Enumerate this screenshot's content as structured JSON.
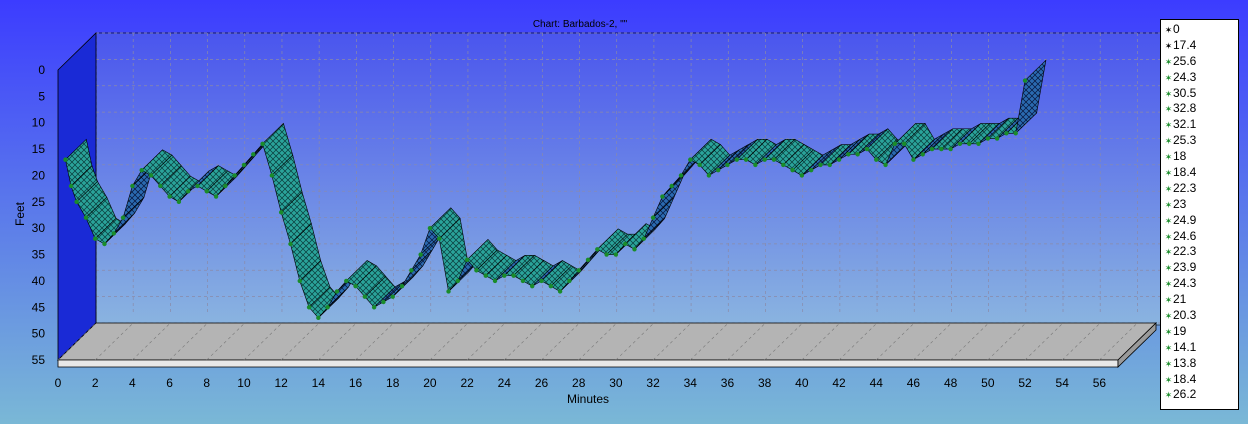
{
  "colors": {
    "background_top": "#3c3cff",
    "background_bottom": "#7ab8d6",
    "plot_top": "#4a55ee",
    "plot_bottom": "#8ab4e0",
    "wall": "#1a2ad6",
    "floor": "#b4b4b4",
    "ribbon_front": "#2aa39a",
    "ribbon_back": "#0c2a8a",
    "marker": "#1a8c2a"
  },
  "chart_data": {
    "type": "line",
    "title": "Chart: Barbados-2, \"\"",
    "xlabel": "Minutes",
    "ylabel": "Feet",
    "xlim": [
      0,
      57
    ],
    "ylim": [
      57,
      -2
    ],
    "x_ticks": [
      "0",
      "2",
      "4",
      "6",
      "8",
      "10",
      "12",
      "14",
      "16",
      "18",
      "20",
      "22",
      "24",
      "26",
      "28",
      "30",
      "32",
      "34",
      "36",
      "38",
      "40",
      "42",
      "44",
      "46",
      "48",
      "50",
      "52",
      "54",
      "56"
    ],
    "y_ticks": [
      "0",
      "5",
      "10",
      "15",
      "20",
      "25",
      "30",
      "35",
      "40",
      "45",
      "50",
      "55"
    ],
    "grid": true,
    "legend_position": "right",
    "legend": [
      "0",
      "17.4",
      "25.6",
      "24.3",
      "30.5",
      "32.8",
      "32.1",
      "25.3",
      "18",
      "18.4",
      "22.3",
      "23",
      "24.9",
      "24.6",
      "22.3",
      "23.9",
      "24.3",
      "21",
      "20.3",
      "19",
      "14.1",
      "13.8",
      "18.4",
      "26.2"
    ],
    "series": [
      {
        "x": [
          0.4,
          0.7,
          1.0,
          1.5,
          2.0,
          2.5,
          3.0,
          3.5,
          4.0,
          4.5,
          5.0,
          5.5,
          6.0,
          6.5,
          7.0,
          7.5,
          8.0,
          8.5,
          9.0,
          9.5,
          10.0,
          10.5,
          11.0,
          11.5,
          12.0,
          12.5,
          13.0,
          13.5,
          14.0,
          14.5,
          15.0,
          15.5,
          16.0,
          16.5,
          17.0,
          17.5,
          18.0,
          18.5,
          19.0,
          19.5,
          20.0,
          20.5,
          21.0,
          21.5,
          22.0,
          22.5,
          23.0,
          23.5,
          24.0,
          24.5,
          25.0,
          25.5,
          26.0,
          26.5,
          27.0,
          27.5,
          28.0,
          28.5,
          29.0,
          29.5,
          30.0,
          30.5,
          31.0,
          31.5,
          32.0,
          32.5,
          33.0,
          33.5,
          34.0,
          34.5,
          35.0,
          35.5,
          36.0,
          36.5,
          37.0,
          37.5,
          38.0,
          38.5,
          39.0,
          39.5,
          40.0,
          40.5,
          41.0,
          41.5,
          42.0,
          42.5,
          43.0,
          43.5,
          44.0,
          44.5,
          45.0,
          45.5,
          46.0,
          46.5,
          47.0,
          47.5,
          48.0,
          48.5,
          49.0,
          49.5,
          50.0,
          50.5,
          51.0,
          51.5,
          52.0
        ],
        "y": [
          17,
          22,
          25,
          28,
          32,
          33,
          31,
          28,
          22,
          19,
          20,
          22,
          24,
          25,
          23,
          22,
          23,
          24,
          22,
          20,
          18,
          16,
          14,
          20,
          27,
          33,
          40,
          45,
          47,
          45,
          42,
          40,
          41,
          43,
          45,
          44,
          43,
          41,
          38,
          35,
          30,
          32,
          42,
          40,
          36,
          38,
          39,
          40,
          39,
          39,
          40,
          41,
          40,
          41,
          42,
          40,
          38,
          36,
          34,
          35,
          35,
          33,
          34,
          32,
          28,
          24,
          22,
          20,
          17,
          18,
          20,
          19,
          18,
          17,
          17,
          18,
          17,
          17,
          18,
          19,
          20,
          19,
          18,
          18,
          17,
          16,
          16,
          15,
          17,
          18,
          14,
          14,
          17,
          16,
          15,
          15,
          15,
          14,
          14,
          14,
          13,
          13,
          12,
          12,
          2
        ]
      }
    ]
  }
}
